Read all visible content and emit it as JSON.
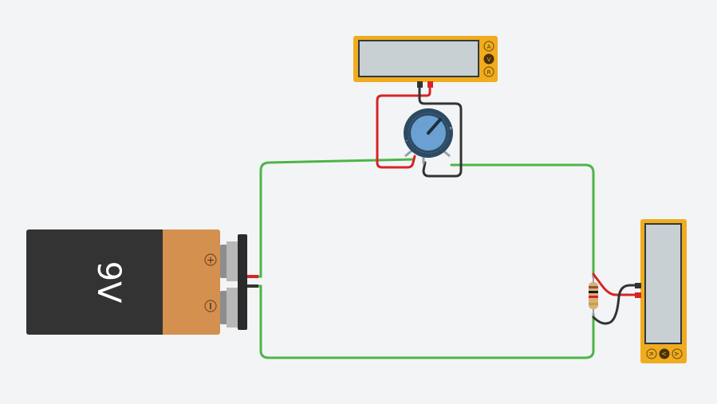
{
  "battery": {
    "label": "9V",
    "plus_symbol": "+",
    "minus_symbol": "−"
  },
  "multimeter_top": {
    "mode_buttons": [
      "A",
      "V",
      "R"
    ],
    "selected_mode": "V",
    "display_text": ""
  },
  "multimeter_right": {
    "mode_buttons": [
      "R",
      "V",
      "A"
    ],
    "selected_mode": "V",
    "display_text": ""
  },
  "colors": {
    "background": "#f3f4f6",
    "circuit_wire": "#4db548",
    "probe_red": "#d52525",
    "probe_black": "#333333",
    "meter_body": "#f0ac1e",
    "meter_display": "#c8d0d3",
    "battery_body": "#333333",
    "battery_cap": "#d4904f",
    "pot_knob": "#6aa0d2"
  },
  "icons": [
    "potentiometer-icon",
    "resistor-icon",
    "battery-icon",
    "multimeter-icon"
  ]
}
